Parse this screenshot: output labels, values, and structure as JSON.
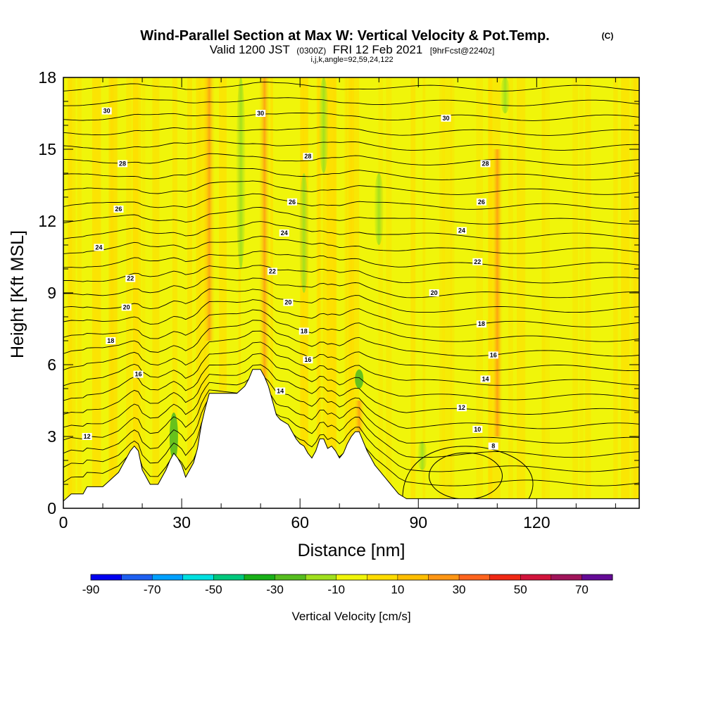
{
  "header": {
    "title": "Wind-Parallel Section at Max W: Vertical Velocity & Pot.Temp.",
    "copyright": "(C)",
    "valid_prefix": "Valid 1200 JST",
    "valid_zulu": "(0300Z)",
    "valid_date": "FRI 12 Feb 2021",
    "forecast": "[9hrFcst@2240z]",
    "section_params": "i,j,k,angle=92,59,24,122"
  },
  "chart_data": {
    "type": "heatmap",
    "xlabel": "Distance [nm]",
    "ylabel": "Height [Kft MSL]",
    "xlim": [
      0,
      146
    ],
    "ylim": [
      0,
      18
    ],
    "x_ticks": [
      0,
      30,
      60,
      90,
      120
    ],
    "y_ticks": [
      0,
      3,
      6,
      9,
      12,
      15,
      18
    ],
    "x_minor_step": 10,
    "y_minor_step": 1,
    "colorbar": {
      "label": "Vertical Velocity [cm/s]",
      "tick_labels": [
        "-90",
        "-70",
        "-50",
        "-30",
        "-10",
        "10",
        "30",
        "50",
        "70"
      ],
      "range": [
        -90,
        80
      ],
      "step": 10,
      "colors": [
        "#0000f0",
        "#1e5ff0",
        "#00a0ff",
        "#00e0e0",
        "#00c87d",
        "#19b019",
        "#56bd1f",
        "#a0e01e",
        "#f0f50a",
        "#ffdc00",
        "#ffbe00",
        "#ff9614",
        "#ff641e",
        "#f02814",
        "#d2143c",
        "#a0145a",
        "#640a96"
      ]
    },
    "theta_contours": {
      "step": 2,
      "label_positions": [
        {
          "x": 11,
          "y": 16.6,
          "v": "30"
        },
        {
          "x": 50,
          "y": 16.5,
          "v": "30"
        },
        {
          "x": 97,
          "y": 16.3,
          "v": "30"
        },
        {
          "x": 15,
          "y": 14.4,
          "v": "28"
        },
        {
          "x": 62,
          "y": 14.7,
          "v": "28"
        },
        {
          "x": 107,
          "y": 14.4,
          "v": "28"
        },
        {
          "x": 14,
          "y": 12.5,
          "v": "26"
        },
        {
          "x": 58,
          "y": 12.8,
          "v": "26"
        },
        {
          "x": 106,
          "y": 12.8,
          "v": "26"
        },
        {
          "x": 9,
          "y": 10.9,
          "v": "24"
        },
        {
          "x": 56,
          "y": 11.5,
          "v": "24"
        },
        {
          "x": 101,
          "y": 11.6,
          "v": "24"
        },
        {
          "x": 17,
          "y": 9.6,
          "v": "22"
        },
        {
          "x": 53,
          "y": 9.9,
          "v": "22"
        },
        {
          "x": 105,
          "y": 10.3,
          "v": "22"
        },
        {
          "x": 16,
          "y": 8.4,
          "v": "20"
        },
        {
          "x": 57,
          "y": 8.6,
          "v": "20"
        },
        {
          "x": 94,
          "y": 9.0,
          "v": "20"
        },
        {
          "x": 12,
          "y": 7.0,
          "v": "18"
        },
        {
          "x": 61,
          "y": 7.4,
          "v": "18"
        },
        {
          "x": 106,
          "y": 7.7,
          "v": "18"
        },
        {
          "x": 19,
          "y": 5.6,
          "v": "16"
        },
        {
          "x": 62,
          "y": 6.2,
          "v": "16"
        },
        {
          "x": 109,
          "y": 6.4,
          "v": "16"
        },
        {
          "x": 55,
          "y": 4.9,
          "v": "14"
        },
        {
          "x": 107,
          "y": 5.4,
          "v": "14"
        },
        {
          "x": 101,
          "y": 4.2,
          "v": "12"
        },
        {
          "x": 6,
          "y": 3.0,
          "v": "12"
        },
        {
          "x": 105,
          "y": 3.3,
          "v": "10"
        },
        {
          "x": 109,
          "y": 2.6,
          "v": "8"
        }
      ]
    },
    "terrain_top_kft": [
      [
        0,
        0.3
      ],
      [
        2,
        0.6
      ],
      [
        5,
        0.6
      ],
      [
        6,
        0.9
      ],
      [
        8,
        0.9
      ],
      [
        10,
        0.9
      ],
      [
        12,
        1.2
      ],
      [
        14,
        1.5
      ],
      [
        15,
        1.8
      ],
      [
        16,
        2.1
      ],
      [
        17,
        2.4
      ],
      [
        18,
        2.6
      ],
      [
        19,
        2.4
      ],
      [
        20,
        1.6
      ],
      [
        21,
        1.3
      ],
      [
        22,
        1.0
      ],
      [
        24,
        1.0
      ],
      [
        25,
        1.3
      ],
      [
        26,
        1.6
      ],
      [
        27,
        2.0
      ],
      [
        28,
        2.3
      ],
      [
        29,
        2.1
      ],
      [
        30,
        1.8
      ],
      [
        31,
        1.3
      ],
      [
        32,
        1.6
      ],
      [
        33,
        1.9
      ],
      [
        34,
        2.5
      ],
      [
        35,
        3.5
      ],
      [
        36,
        4.2
      ],
      [
        37,
        4.8
      ],
      [
        40,
        4.8
      ],
      [
        44,
        4.8
      ],
      [
        46,
        5.1
      ],
      [
        47,
        5.4
      ],
      [
        48,
        5.8
      ],
      [
        50,
        5.8
      ],
      [
        51,
        5.5
      ],
      [
        52,
        5.1
      ],
      [
        53,
        4.5
      ],
      [
        54,
        3.9
      ],
      [
        55,
        3.7
      ],
      [
        56,
        3.6
      ],
      [
        57,
        3.5
      ],
      [
        58,
        3.2
      ],
      [
        59,
        2.9
      ],
      [
        60,
        2.7
      ],
      [
        61,
        2.6
      ],
      [
        62,
        2.3
      ],
      [
        63,
        2.1
      ],
      [
        64,
        2.4
      ],
      [
        65,
        2.9
      ],
      [
        66,
        2.9
      ],
      [
        67,
        2.5
      ],
      [
        68,
        2.6
      ],
      [
        69,
        2.4
      ],
      [
        70,
        2.1
      ],
      [
        71,
        2.3
      ],
      [
        72,
        2.7
      ],
      [
        73,
        3.0
      ],
      [
        74,
        3.2
      ],
      [
        75,
        3.2
      ],
      [
        76,
        2.8
      ],
      [
        77,
        2.4
      ],
      [
        78,
        2.1
      ],
      [
        79,
        1.8
      ],
      [
        80,
        1.6
      ],
      [
        81,
        1.4
      ],
      [
        82,
        1.2
      ],
      [
        83,
        1.0
      ],
      [
        84,
        0.8
      ],
      [
        85,
        0.6
      ],
      [
        86,
        0.5
      ],
      [
        87,
        0.4
      ],
      [
        146,
        0.4
      ]
    ],
    "updraft_cores": [
      {
        "x": 51,
        "y_from": 3.5,
        "y_to": 18,
        "w_cm_s": 25
      },
      {
        "x": 75,
        "y_from": 3.2,
        "y_to": 4.5,
        "w_cm_s": 30
      },
      {
        "x": 37,
        "y_from": 7,
        "y_to": 18,
        "w_cm_s": 12
      },
      {
        "x": 110,
        "y_from": 3,
        "y_to": 15,
        "w_cm_s": 12
      }
    ],
    "downdraft_cores": [
      {
        "x": 45,
        "y_from": 10,
        "y_to": 18,
        "w_cm_s": -12
      },
      {
        "x": 66,
        "y_from": 14,
        "y_to": 18,
        "w_cm_s": -15
      },
      {
        "x": 61,
        "y_from": 9,
        "y_to": 14,
        "w_cm_s": -12
      },
      {
        "x": 80,
        "y_from": 11,
        "y_to": 14,
        "w_cm_s": -12
      },
      {
        "x": 112,
        "y_from": 16.5,
        "y_to": 18,
        "w_cm_s": -12
      },
      {
        "x": 28,
        "y_from": 2,
        "y_to": 4,
        "w_cm_s": -25
      },
      {
        "x": 75,
        "y_from": 5,
        "y_to": 5.8,
        "w_cm_s": -20
      },
      {
        "x": 91,
        "y_from": 1.6,
        "y_to": 2.8,
        "w_cm_s": -12
      }
    ]
  }
}
